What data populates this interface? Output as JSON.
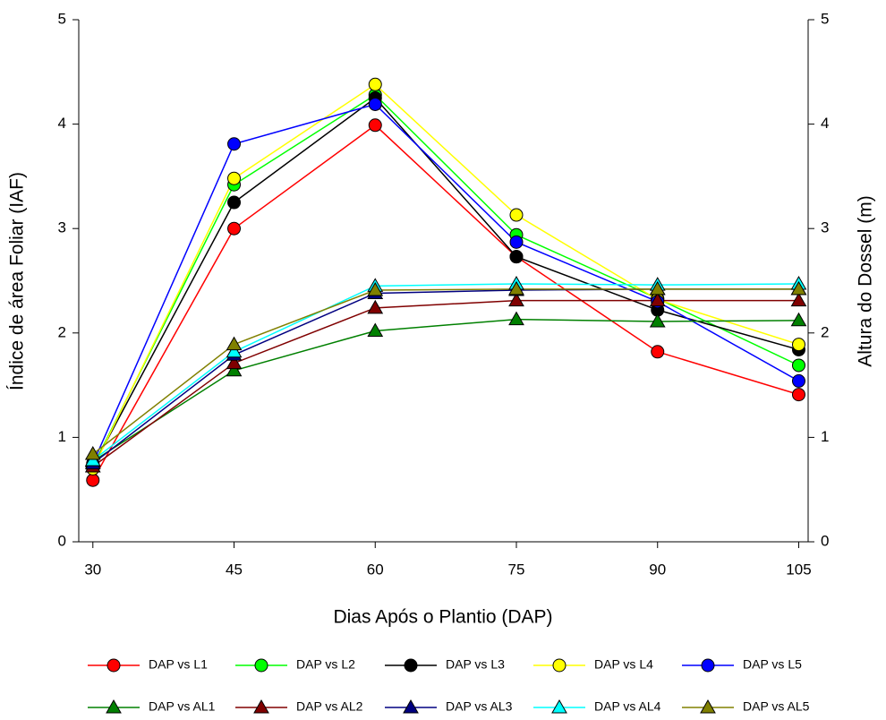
{
  "chart_data": {
    "type": "line",
    "x_label": "Dias Após o Plantio (DAP)",
    "y_label": "Índice de área Foliar (IAF)",
    "y2_label": "Altura do Dossel (m)",
    "x": [
      30,
      45,
      60,
      75,
      90,
      105
    ],
    "xlim": [
      28.5,
      106
    ],
    "xticks": [
      30,
      45,
      60,
      75,
      90,
      105
    ],
    "ylim": [
      0,
      5
    ],
    "yticks": [
      0,
      1,
      2,
      3,
      4,
      5
    ],
    "y2lim": [
      0,
      5
    ],
    "y2ticks": [
      0,
      1,
      2,
      3,
      4,
      5
    ],
    "series": [
      {
        "name": "DAP vs L1",
        "color": "#ff0000",
        "marker": "circle",
        "values": [
          0.59,
          3.0,
          3.99,
          2.73,
          1.82,
          1.41
        ]
      },
      {
        "name": "DAP vs L2",
        "color": "#00ff00",
        "marker": "circle",
        "values": [
          0.72,
          3.42,
          4.28,
          2.94,
          2.33,
          1.69
        ]
      },
      {
        "name": "DAP vs L3",
        "color": "#000000",
        "marker": "circle",
        "values": [
          0.72,
          3.25,
          4.25,
          2.73,
          2.22,
          1.84
        ]
      },
      {
        "name": "DAP vs L4",
        "color": "#ffff00",
        "marker": "circle",
        "values": [
          0.7,
          3.48,
          4.38,
          3.13,
          2.32,
          1.89
        ]
      },
      {
        "name": "DAP vs L5",
        "color": "#0000ff",
        "marker": "circle",
        "values": [
          0.75,
          3.81,
          4.19,
          2.87,
          2.3,
          1.54
        ]
      },
      {
        "name": "DAP vs AL1",
        "color": "#008000",
        "marker": "triangle",
        "axis": "y2",
        "values": [
          0.77,
          1.64,
          2.02,
          2.13,
          2.11,
          2.12
        ]
      },
      {
        "name": "DAP vs AL2",
        "color": "#800000",
        "marker": "triangle",
        "axis": "y2",
        "values": [
          0.72,
          1.71,
          2.24,
          2.31,
          2.31,
          2.31
        ]
      },
      {
        "name": "DAP vs AL3",
        "color": "#000080",
        "marker": "triangle",
        "axis": "y2",
        "values": [
          0.75,
          1.79,
          2.38,
          2.41,
          2.42,
          2.42
        ]
      },
      {
        "name": "DAP vs AL4",
        "color": "#00ffff",
        "marker": "triangle",
        "axis": "y2",
        "values": [
          0.78,
          1.82,
          2.45,
          2.47,
          2.46,
          2.47
        ]
      },
      {
        "name": "DAP vs AL5",
        "color": "#808000",
        "marker": "triangle",
        "axis": "y2",
        "values": [
          0.84,
          1.89,
          2.41,
          2.42,
          2.42,
          2.42
        ]
      }
    ]
  }
}
